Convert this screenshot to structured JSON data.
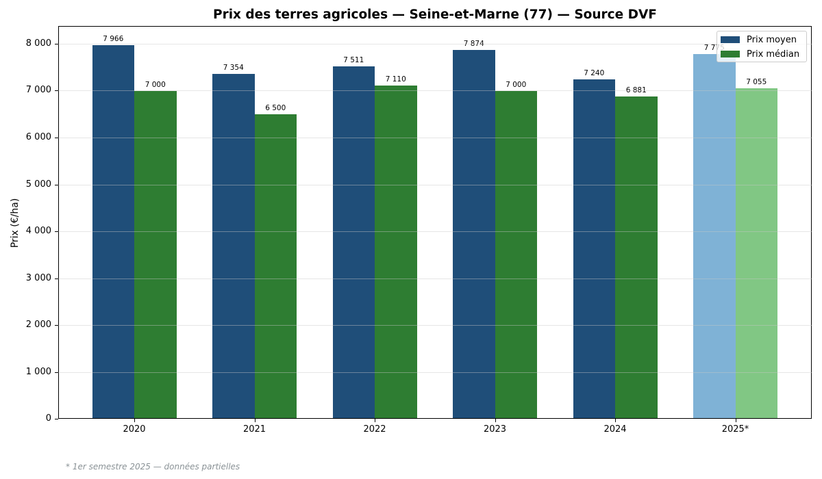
{
  "chart_data": {
    "type": "bar",
    "title": "Prix des terres agricoles — Seine-et-Marne (77) — Source DVF",
    "xlabel": "",
    "ylabel": "Prix (€/ha)",
    "ylim": [
      0,
      8380
    ],
    "yticks": [
      0,
      1000,
      2000,
      3000,
      4000,
      5000,
      6000,
      7000,
      8000
    ],
    "ytick_labels": [
      "0",
      "1 000",
      "2 000",
      "3 000",
      "4 000",
      "5 000",
      "6 000",
      "7 000",
      "8 000"
    ],
    "grid": true,
    "legend_position": "upper right",
    "categories": [
      "2020",
      "2021",
      "2022",
      "2023",
      "2024",
      "2025*"
    ],
    "series": [
      {
        "name": "Prix moyen",
        "color": "#1f4e79",
        "partial_color": "#7fb2d6",
        "values": [
          7966,
          7354,
          7511,
          7874,
          7240,
          7775
        ],
        "labels": [
          "7 966",
          "7 354",
          "7 511",
          "7 874",
          "7 240",
          "7 775"
        ]
      },
      {
        "name": "Prix médian",
        "color": "#2e7d32",
        "partial_color": "#81c784",
        "values": [
          7000,
          6500,
          7110,
          7000,
          6881,
          7055
        ],
        "labels": [
          "7 000",
          "6 500",
          "7 110",
          "7 000",
          "6 881",
          "7 055"
        ]
      }
    ],
    "annotations": [
      "* 1er semestre 2025 — données partielles"
    ]
  },
  "title": "Prix des terres agricoles — Seine-et-Marne (77) — Source DVF",
  "footnote": "* 1er semestre 2025 — données partielles"
}
